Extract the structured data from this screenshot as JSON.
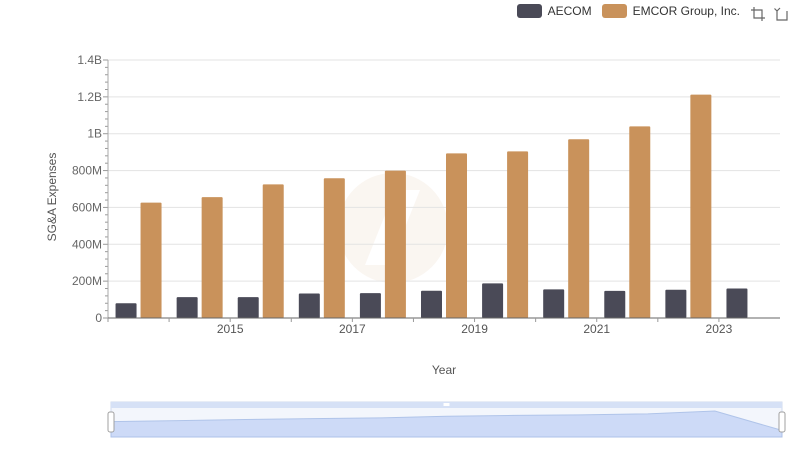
{
  "legend": {
    "items": [
      {
        "name": "AECOM",
        "color": "#4a4a57"
      },
      {
        "name": "EMCOR Group, Inc.",
        "color": "#c9925b"
      }
    ]
  },
  "toolbox": {
    "icons": [
      "zoom-icon",
      "restore-icon"
    ]
  },
  "chart_data": {
    "type": "bar",
    "x": [
      2014,
      2015,
      2016,
      2017,
      2018,
      2019,
      2020,
      2021,
      2022,
      2023,
      2024
    ],
    "xticks": [
      "2015",
      "2017",
      "2019",
      "2021",
      "2023"
    ],
    "xlabel": "Year",
    "ylabel": "SG&A Expenses",
    "ylim": [
      0,
      1400000000
    ],
    "yticks": [
      {
        "v": 0,
        "label": "0"
      },
      {
        "v": 200000000,
        "label": "200M"
      },
      {
        "v": 400000000,
        "label": "400M"
      },
      {
        "v": 600000000,
        "label": "600M"
      },
      {
        "v": 800000000,
        "label": "800M"
      },
      {
        "v": 1000000000,
        "label": "1B"
      },
      {
        "v": 1200000000,
        "label": "1.2B"
      },
      {
        "v": 1400000000,
        "label": "1.4B"
      }
    ],
    "grid": true,
    "legend_position": "top-right",
    "series": [
      {
        "name": "AECOM",
        "color": "#4a4a57",
        "values": [
          80000000,
          113000000,
          113000000,
          133000000,
          135000000,
          148000000,
          188000000,
          155000000,
          147000000,
          153000000,
          160000000
        ]
      },
      {
        "name": "EMCOR Group, Inc.",
        "color": "#c9925b",
        "values": [
          626000000,
          656000000,
          725000000,
          758000000,
          800000000,
          893000000,
          904000000,
          970000000,
          1040000000,
          1212000000,
          null
        ]
      }
    ]
  }
}
